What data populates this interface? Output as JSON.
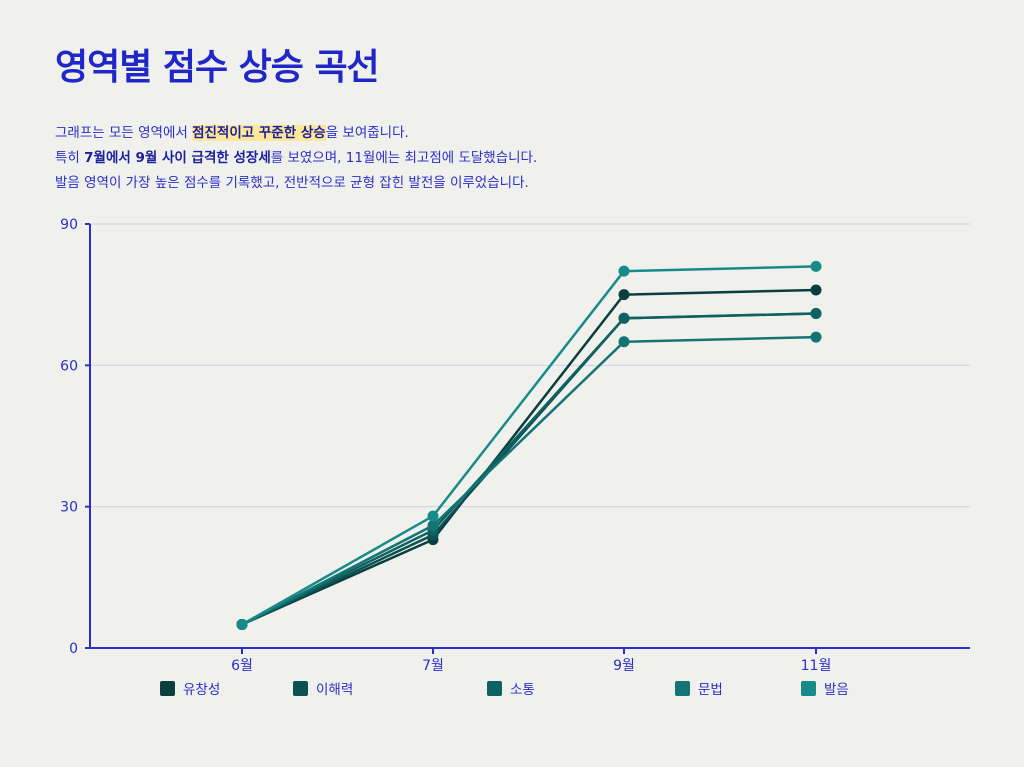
{
  "title": "영역별 점수 상승 곡선",
  "description": {
    "line1": {
      "a": "그래프는 모든 영역에서 ",
      "b": "점진적이고 꾸준한 상승",
      "c": "을 보여줍니다."
    },
    "line2": {
      "a": "특히 ",
      "b": "7월에서 9월 사이 급격한 성장세",
      "c": "를 보였으며, 11월에는 최고점에 도달했습니다."
    },
    "line3": "발음 영역이 가장 높은 점수를 기록했고, 전반적으로 균형 잡힌 발전을 이루었습니다."
  },
  "chart_data": {
    "type": "line",
    "categories": [
      "6월",
      "7월",
      "9월",
      "11월"
    ],
    "ylim": [
      0,
      90
    ],
    "yticks": [
      0,
      30,
      60,
      90
    ],
    "grid": true,
    "legend_placement": "bottom",
    "series": [
      {
        "name": "유창성",
        "color": "#0b3f3f",
        "values": [
          5,
          23,
          75,
          76
        ]
      },
      {
        "name": "이해력",
        "color": "#0d5252",
        "values": [
          5,
          24,
          70,
          71
        ]
      },
      {
        "name": "소통",
        "color": "#0f6262",
        "values": [
          5,
          25,
          70,
          71
        ]
      },
      {
        "name": "문법",
        "color": "#137474",
        "values": [
          5,
          26,
          65,
          66
        ]
      },
      {
        "name": "발음",
        "color": "#178a8a",
        "values": [
          5,
          28,
          80,
          81
        ]
      }
    ]
  }
}
